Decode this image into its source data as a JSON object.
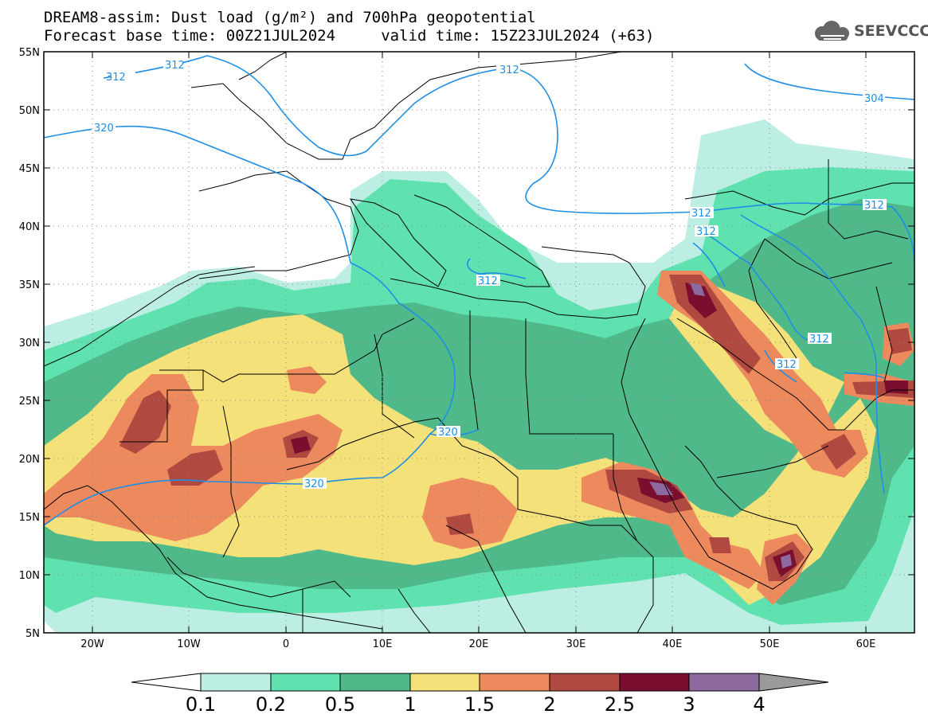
{
  "title_line1": "DREAM8-assim: Dust load (g/m²) and 700hPa geopotential",
  "title_line2": "Forecast base time: 00Z21JUL2024     valid time: 15Z23JUL2024 (+63)",
  "logo_text": "SEEVCCC",
  "map": {
    "lon_range": [
      -25,
      65
    ],
    "lat_range": [
      5,
      55
    ],
    "lat_ticks": [
      "55N",
      "50N",
      "45N",
      "40N",
      "35N",
      "30N",
      "25N",
      "20N",
      "15N",
      "10N",
      "5N"
    ],
    "lon_ticks": [
      "20W",
      "10W",
      "0",
      "10E",
      "20E",
      "30E",
      "40E",
      "50E",
      "60E"
    ],
    "contour_labels": [
      "312",
      "312",
      "312",
      "304",
      "320",
      "312",
      "312",
      "312",
      "312",
      "312",
      "312",
      "320",
      "320"
    ],
    "contour_color": "#1e8fe6"
  },
  "colorbar": {
    "labels": [
      "0.1",
      "0.2",
      "0.5",
      "1",
      "1.5",
      "2",
      "2.5",
      "3",
      "4"
    ],
    "colors": [
      "#bdeee3",
      "#5fe2b0",
      "#4fb98a",
      "#f4e179",
      "#ec8a5e",
      "#b04a40",
      "#7a0e2e",
      "#8c6aa0"
    ]
  }
}
